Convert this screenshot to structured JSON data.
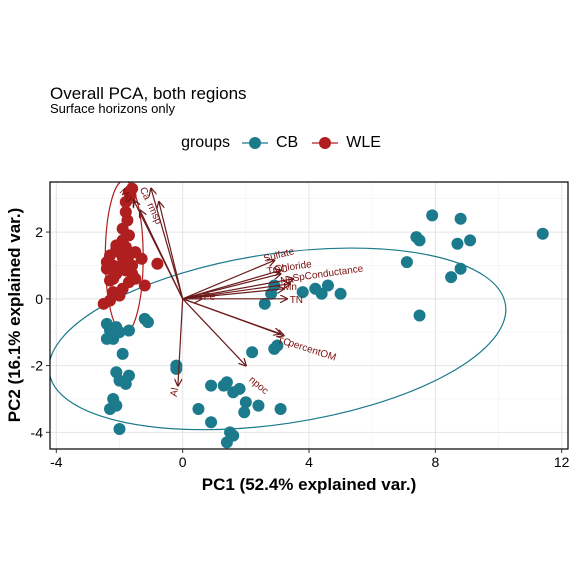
{
  "chart_data": {
    "type": "scatter",
    "title": "Overall PCA, both regions",
    "subtitle": "Surface horizons only",
    "xlabel": "PC1 (52.4% explained var.)",
    "ylabel": "PC2 (16.1% explained var.)",
    "xlim": [
      -4.2,
      12.2
    ],
    "ylim": [
      -4.5,
      3.5
    ],
    "x_ticks": [
      -4,
      0,
      4,
      8,
      12
    ],
    "y_ticks": [
      -4,
      -2,
      0,
      2
    ],
    "grid": true,
    "legend": {
      "title": "groups",
      "position": "top",
      "entries": [
        "CB",
        "WLE"
      ]
    },
    "series": [
      {
        "name": "CB",
        "color": "#1b7a8c",
        "points": [
          [
            7.9,
            2.5
          ],
          [
            8.8,
            2.4
          ],
          [
            11.4,
            1.95
          ],
          [
            7.4,
            1.85
          ],
          [
            7.5,
            1.75
          ],
          [
            9.1,
            1.75
          ],
          [
            8.7,
            1.65
          ],
          [
            7.1,
            1.1
          ],
          [
            8.5,
            0.65
          ],
          [
            8.8,
            0.9
          ],
          [
            7.5,
            -0.5
          ],
          [
            4.6,
            0.4
          ],
          [
            4.2,
            0.3
          ],
          [
            4.4,
            0.15
          ],
          [
            3.8,
            0.2
          ],
          [
            5.0,
            0.15
          ],
          [
            2.9,
            0.4
          ],
          [
            2.8,
            0.15
          ],
          [
            2.6,
            -0.15
          ],
          [
            3.0,
            -1.4
          ],
          [
            2.9,
            -1.5
          ],
          [
            2.2,
            -1.6
          ],
          [
            -0.2,
            -2.0
          ],
          [
            -0.2,
            -2.1
          ],
          [
            -2.4,
            -0.75
          ],
          [
            -2.3,
            -0.95
          ],
          [
            -2.1,
            -0.85
          ],
          [
            -2.0,
            -1.0
          ],
          [
            -1.7,
            -0.95
          ],
          [
            -1.2,
            -0.6
          ],
          [
            -1.1,
            -0.7
          ],
          [
            -2.4,
            -1.2
          ],
          [
            -2.2,
            -1.2
          ],
          [
            -1.9,
            -1.65
          ],
          [
            -2.1,
            -2.2
          ],
          [
            -1.7,
            -2.3
          ],
          [
            -2.0,
            -2.45
          ],
          [
            -1.8,
            -2.55
          ],
          [
            -2.2,
            -3.0
          ],
          [
            -2.3,
            -3.3
          ],
          [
            -2.1,
            -3.2
          ],
          [
            -2.0,
            -3.9
          ],
          [
            0.9,
            -2.6
          ],
          [
            1.4,
            -2.5
          ],
          [
            1.6,
            -2.8
          ],
          [
            1.3,
            -2.6
          ],
          [
            1.8,
            -2.7
          ],
          [
            2.0,
            -3.1
          ],
          [
            2.4,
            -3.2
          ],
          [
            1.95,
            -3.4
          ],
          [
            3.1,
            -3.3
          ],
          [
            0.5,
            -3.3
          ],
          [
            0.9,
            -3.7
          ],
          [
            1.5,
            -4.0
          ],
          [
            1.6,
            -4.1
          ],
          [
            1.4,
            -4.3
          ]
        ]
      },
      {
        "name": "WLE",
        "color": "#b01f1f",
        "points": [
          [
            -1.6,
            3.3
          ],
          [
            -1.7,
            3.2
          ],
          [
            -1.65,
            3.1
          ],
          [
            -1.8,
            2.9
          ],
          [
            -1.8,
            2.6
          ],
          [
            -1.75,
            2.35
          ],
          [
            -1.9,
            2.1
          ],
          [
            -1.7,
            1.9
          ],
          [
            -1.9,
            1.75
          ],
          [
            -2.1,
            1.6
          ],
          [
            -1.8,
            1.55
          ],
          [
            -2.3,
            1.3
          ],
          [
            -2.0,
            1.4
          ],
          [
            -1.7,
            1.3
          ],
          [
            -1.5,
            1.4
          ],
          [
            -1.3,
            1.2
          ],
          [
            -2.4,
            1.1
          ],
          [
            -2.2,
            1.0
          ],
          [
            -2.0,
            0.95
          ],
          [
            -1.9,
            1.05
          ],
          [
            -1.6,
            1.0
          ],
          [
            -1.8,
            0.85
          ],
          [
            -2.1,
            0.75
          ],
          [
            -2.3,
            0.55
          ],
          [
            -2.4,
            0.9
          ],
          [
            -1.5,
            0.6
          ],
          [
            -2.2,
            0.2
          ],
          [
            -1.9,
            0.3
          ],
          [
            -2.5,
            -0.15
          ],
          [
            -2.3,
            -0.05
          ],
          [
            -2.0,
            0.1
          ],
          [
            -1.7,
            0.5
          ],
          [
            -1.2,
            0.4
          ],
          [
            -0.8,
            1.05
          ],
          [
            -2.1,
            1.5
          ],
          [
            -1.9,
            1.25
          ],
          [
            -1.6,
            0.75
          ],
          [
            -2.2,
            0.6
          ]
        ]
      }
    ],
    "ellipses": [
      {
        "group": "CB",
        "center": [
          3.0,
          -1.2
        ],
        "semi_axes": [
          7.3,
          2.55
        ],
        "angle_deg": 8.5
      },
      {
        "group": "WLE",
        "center": [
          -1.85,
          1.25
        ],
        "semi_axes": [
          0.6,
          2.3
        ],
        "angle_deg": 0
      }
    ],
    "loadings": [
      {
        "label": "Ca",
        "x": -1.0,
        "y": 3.3,
        "label_x": -1.2,
        "label_y": 3.15,
        "rotation": 65
      },
      {
        "label": "rmsp",
        "x": -0.75,
        "y": 2.9,
        "label_x": -0.9,
        "label_y": 2.55,
        "rotation": 65
      },
      {
        "label": "Mg",
        "x": -1.55,
        "y": 2.95,
        "label_x": -1.8,
        "label_y": 3.1,
        "rotation": 45
      },
      {
        "label": "K",
        "x": -1.35,
        "y": 2.65,
        "label_x": -1.55,
        "label_y": 2.85,
        "rotation": 45
      },
      {
        "label": "Sulfate",
        "x": 2.9,
        "y": 1.15,
        "label_x": 3.05,
        "label_y": 1.3,
        "rotation": -15
      },
      {
        "label": "Chloride",
        "x": 3.1,
        "y": 0.85,
        "label_x": 3.5,
        "label_y": 0.95,
        "rotation": -8
      },
      {
        "label": "TOC",
        "x": 3.1,
        "y": 0.75,
        "label_x": 3.0,
        "label_y": 0.85,
        "rotation": -8
      },
      {
        "label": "SpConductance",
        "x": 3.5,
        "y": 0.6,
        "label_x": 4.6,
        "label_y": 0.75,
        "rotation": -8
      },
      {
        "label": "Na",
        "x": 3.4,
        "y": 0.45,
        "label_x": 3.3,
        "label_y": 0.55,
        "rotation": -8
      },
      {
        "label": "Mn",
        "x": 3.2,
        "y": 0.3,
        "label_x": 3.4,
        "label_y": 0.35,
        "rotation": 0
      },
      {
        "label": "TN",
        "x": 3.3,
        "y": 0.0,
        "label_x": 3.6,
        "label_y": -0.05,
        "rotation": 0
      },
      {
        "label": "Fe",
        "x": 0.6,
        "y": 0.0,
        "label_x": 0.85,
        "label_y": 0.05,
        "rotation": 0
      },
      {
        "label": "TC",
        "x": 3.2,
        "y": -1.1,
        "label_x": 3.2,
        "label_y": -1.3,
        "rotation": 10
      },
      {
        "label": "percentOM",
        "x": 3.1,
        "y": -1.05,
        "label_x": 4.1,
        "label_y": -1.55,
        "rotation": 18
      },
      {
        "label": "npoc",
        "x": 2.0,
        "y": -2.0,
        "label_x": 2.4,
        "label_y": -2.6,
        "rotation": 40
      },
      {
        "label": "Al",
        "x": -0.15,
        "y": -2.6,
        "label_x": -0.25,
        "label_y": -2.8,
        "rotation": -80
      }
    ]
  }
}
